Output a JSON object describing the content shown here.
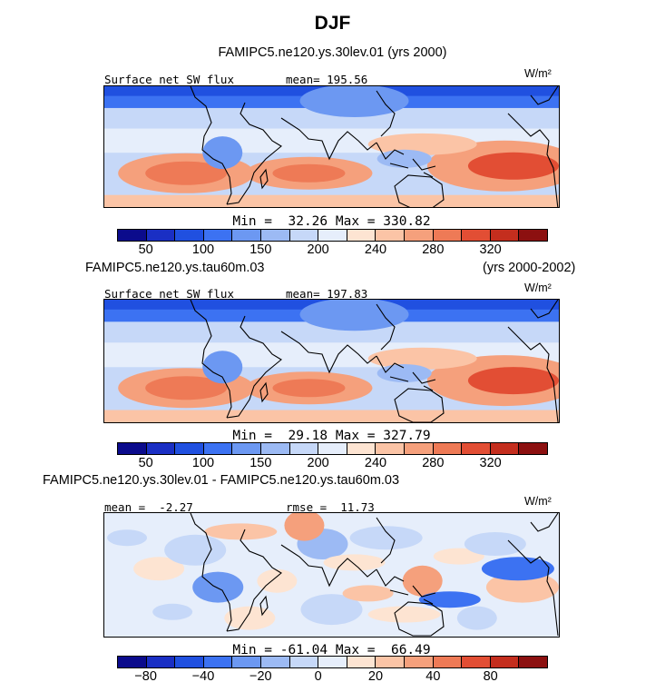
{
  "title": "DJF",
  "subtitle": "FAMIPC5.ne120.ys.30lev.01 (yrs 2000)",
  "panels": [
    {
      "left_label": "Surface net SW flux",
      "center_label": "mean= 195.56",
      "unit": "W/m²",
      "min_max": "Min =  32.26 Max = 330.82",
      "case_label": "",
      "case_years": "",
      "colorbar_ticks": [
        "50",
        "100",
        "150",
        "200",
        "240",
        "280",
        "320"
      ],
      "colorbar_colors": [
        "#0b0b8c",
        "#1a2fc4",
        "#2050e0",
        "#3c72f2",
        "#6c98f2",
        "#9cbaf4",
        "#c6d8f8",
        "#e6eefb",
        "#fde4d2",
        "#fbc4a6",
        "#f5a07c",
        "#ee7a56",
        "#e24e34",
        "#c42e1e",
        "#8c1010"
      ],
      "field": "sw"
    },
    {
      "left_label": "Surface net SW flux",
      "center_label": "mean= 197.83",
      "unit": "W/m²",
      "min_max": "Min =  29.18 Max = 327.79",
      "case_label": "FAMIPC5.ne120.ys.tau60m.03",
      "case_years": "(yrs 2000-2002)",
      "colorbar_ticks": [
        "50",
        "100",
        "150",
        "200",
        "240",
        "280",
        "320"
      ],
      "colorbar_colors": [
        "#0b0b8c",
        "#1a2fc4",
        "#2050e0",
        "#3c72f2",
        "#6c98f2",
        "#9cbaf4",
        "#c6d8f8",
        "#e6eefb",
        "#fde4d2",
        "#fbc4a6",
        "#f5a07c",
        "#ee7a56",
        "#e24e34",
        "#c42e1e",
        "#8c1010"
      ],
      "field": "sw"
    },
    {
      "left_label": "mean =  -2.27",
      "center_label": "rmse =  11.73",
      "unit": "W/m²",
      "min_max": "Min = -61.04 Max =  66.49",
      "case_label": "FAMIPC5.ne120.ys.30lev.01 - FAMIPC5.ne120.ys.tau60m.03",
      "case_years": "",
      "colorbar_ticks": [
        "−80",
        "−40",
        "−20",
        "0",
        "20",
        "40",
        "80"
      ],
      "colorbar_colors": [
        "#0b0b8c",
        "#1a2fc4",
        "#2050e0",
        "#3c72f2",
        "#6c98f2",
        "#9cbaf4",
        "#c6d8f8",
        "#e6eefb",
        "#fde4d2",
        "#fbc4a6",
        "#f5a07c",
        "#ee7a56",
        "#e24e34",
        "#c42e1e",
        "#8c1010"
      ],
      "field": "diff"
    }
  ],
  "chart_data": [
    {
      "type": "heatmap",
      "title": "DJF",
      "subtitle": "FAMIPC5.ne120.ys.30lev.01 (yrs 2000)",
      "variable": "Surface net SW flux",
      "units": "W/m²",
      "mean": 195.56,
      "min": 32.26,
      "max": 330.82,
      "colorbar_levels": [
        50,
        100,
        150,
        200,
        240,
        280,
        320
      ]
    },
    {
      "type": "heatmap",
      "case": "FAMIPC5.ne120.ys.tau60m.03",
      "years": "(yrs 2000-2002)",
      "variable": "Surface net SW flux",
      "units": "W/m²",
      "mean": 197.83,
      "min": 29.18,
      "max": 327.79,
      "colorbar_levels": [
        50,
        100,
        150,
        200,
        240,
        280,
        320
      ]
    },
    {
      "type": "heatmap",
      "case": "FAMIPC5.ne120.ys.30lev.01 - FAMIPC5.ne120.ys.tau60m.03",
      "units": "W/m²",
      "mean": -2.27,
      "rmse": 11.73,
      "min": -61.04,
      "max": 66.49,
      "colorbar_levels": [
        -80,
        -40,
        -20,
        0,
        20,
        40,
        80
      ]
    }
  ]
}
